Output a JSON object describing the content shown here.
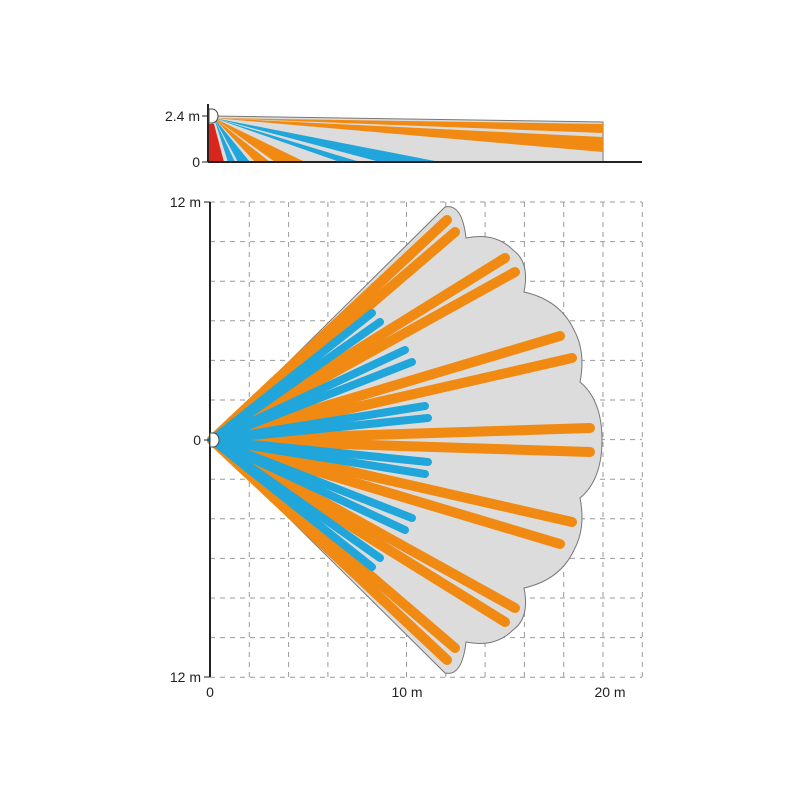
{
  "side_view": {
    "y_labels": [
      "2.4 m",
      "0"
    ]
  },
  "top_view": {
    "y_labels": [
      "12 m",
      "0",
      "12 m"
    ],
    "x_labels": [
      "0",
      "10 m",
      "20 m"
    ]
  },
  "colors": {
    "long_range_beam": "#f08a12",
    "short_range_beam": "#20a6db",
    "creep_zone": "#d9261c",
    "coverage_area": "#dcdcdc",
    "grid": "#9a9a9a",
    "axis": "#222222"
  },
  "icons": [
    "sensor-icon"
  ]
}
